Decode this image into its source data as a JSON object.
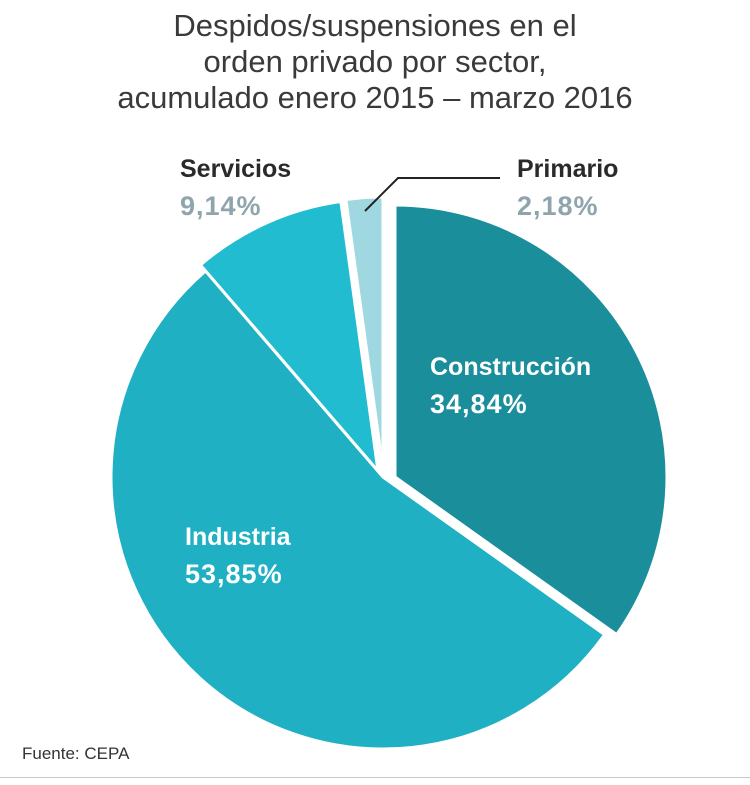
{
  "chart_data": {
    "type": "pie",
    "title": "Despidos/suspensiones en el orden privado por sector, acumulado enero 2015 – marzo 2016",
    "title_lines": [
      "Despidos/suspensiones en el",
      "orden privado por sector,",
      "acumulado enero 2015 – marzo 2016"
    ],
    "slices": [
      {
        "name": "Construcción",
        "value": 34.84,
        "label": "34,84%",
        "color": "#1a8e9b",
        "exploded": true,
        "label_color": "#ffffff"
      },
      {
        "name": "Industria",
        "value": 53.85,
        "label": "53,85%",
        "color": "#1fb0c4",
        "exploded": false,
        "label_color": "#ffffff"
      },
      {
        "name": "Servicios",
        "value": 9.14,
        "label": "9,14%",
        "color": "#21bcd0",
        "exploded": true,
        "label_color": "#8fa4ad",
        "name_color": "#2a2a2a"
      },
      {
        "name": "Primario",
        "value": 2.18,
        "label": "2,18%",
        "color": "#9fd8e0",
        "exploded": true,
        "label_color": "#8fa4ad",
        "name_color": "#2a2a2a"
      }
    ],
    "legend": "none"
  },
  "source": "Fuente: CEPA"
}
